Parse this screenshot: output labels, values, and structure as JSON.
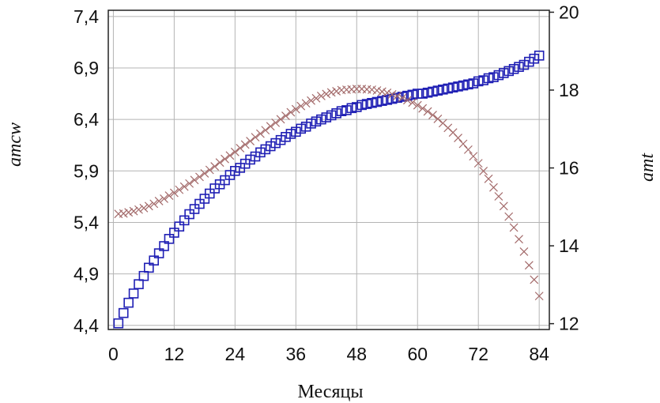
{
  "chart_data": {
    "type": "scatter",
    "xlabel": "Месяцы",
    "ylabel_left": "amcw",
    "ylabel_right": "amt",
    "x_ticks": [
      0,
      12,
      24,
      36,
      48,
      60,
      72,
      84
    ],
    "y_left_ticks": [
      "4,4",
      "4,9",
      "5,4",
      "5,9",
      "6,4",
      "6,9",
      "7,4"
    ],
    "y_right_ticks": [
      "12",
      "14",
      "16",
      "18",
      "20"
    ],
    "xlim": [
      -1,
      86
    ],
    "ylim_left": [
      4.36,
      7.46
    ],
    "ylim_right": [
      11.85,
      20.05
    ],
    "grid": true,
    "series": [
      {
        "axis": "left",
        "marker": "square",
        "color": "#1f1fb4",
        "x": [
          1,
          2,
          3,
          4,
          5,
          6,
          7,
          8,
          9,
          10,
          11,
          12,
          13,
          14,
          15,
          16,
          17,
          18,
          19,
          20,
          21,
          22,
          23,
          24,
          25,
          26,
          27,
          28,
          29,
          30,
          31,
          32,
          33,
          34,
          35,
          36,
          37,
          38,
          39,
          40,
          41,
          42,
          43,
          44,
          45,
          46,
          47,
          48,
          49,
          50,
          51,
          52,
          53,
          54,
          55,
          56,
          57,
          58,
          59,
          60,
          61,
          62,
          63,
          64,
          65,
          66,
          67,
          68,
          69,
          70,
          71,
          72,
          73,
          74,
          75,
          76,
          77,
          78,
          79,
          80,
          81,
          82,
          83,
          84
        ],
        "y": [
          4.42,
          4.52,
          4.62,
          4.71,
          4.8,
          4.88,
          4.96,
          5.03,
          5.1,
          5.17,
          5.24,
          5.3,
          5.36,
          5.42,
          5.48,
          5.53,
          5.58,
          5.63,
          5.68,
          5.73,
          5.77,
          5.81,
          5.86,
          5.9,
          5.93,
          5.97,
          6.01,
          6.04,
          6.08,
          6.11,
          6.14,
          6.17,
          6.2,
          6.23,
          6.26,
          6.28,
          6.31,
          6.33,
          6.36,
          6.38,
          6.4,
          6.42,
          6.44,
          6.46,
          6.48,
          6.49,
          6.51,
          6.52,
          6.54,
          6.55,
          6.56,
          6.57,
          6.58,
          6.59,
          6.6,
          6.61,
          6.62,
          6.63,
          6.64,
          6.65,
          6.65,
          6.66,
          6.67,
          6.68,
          6.69,
          6.7,
          6.71,
          6.72,
          6.73,
          6.74,
          6.75,
          6.77,
          6.78,
          6.8,
          6.81,
          6.83,
          6.85,
          6.87,
          6.89,
          6.91,
          6.93,
          6.96,
          6.99,
          7.02
        ]
      },
      {
        "axis": "right",
        "marker": "x",
        "color": "#a36a6a",
        "x": [
          1,
          2,
          3,
          4,
          5,
          6,
          7,
          8,
          9,
          10,
          11,
          12,
          13,
          14,
          15,
          16,
          17,
          18,
          19,
          20,
          21,
          22,
          23,
          24,
          25,
          26,
          27,
          28,
          29,
          30,
          31,
          32,
          33,
          34,
          35,
          36,
          37,
          38,
          39,
          40,
          41,
          42,
          43,
          44,
          45,
          46,
          47,
          48,
          49,
          50,
          51,
          52,
          53,
          54,
          55,
          56,
          57,
          58,
          59,
          60,
          61,
          62,
          63,
          64,
          65,
          66,
          67,
          68,
          69,
          70,
          71,
          72,
          73,
          74,
          75,
          76,
          77,
          78,
          79,
          80,
          81,
          82,
          83,
          84
        ],
        "y": [
          14.82,
          14.83,
          14.86,
          14.89,
          14.93,
          14.97,
          15.02,
          15.08,
          15.15,
          15.21,
          15.29,
          15.36,
          15.44,
          15.52,
          15.6,
          15.69,
          15.77,
          15.86,
          15.95,
          16.04,
          16.14,
          16.23,
          16.32,
          16.41,
          16.51,
          16.6,
          16.69,
          16.79,
          16.88,
          16.97,
          17.07,
          17.16,
          17.25,
          17.34,
          17.43,
          17.51,
          17.59,
          17.66,
          17.73,
          17.79,
          17.85,
          17.9,
          17.94,
          17.97,
          18.0,
          18.01,
          18.02,
          18.03,
          18.03,
          18.02,
          18.01,
          17.99,
          17.96,
          17.93,
          17.89,
          17.85,
          17.8,
          17.74,
          17.68,
          17.61,
          17.53,
          17.45,
          17.36,
          17.26,
          17.15,
          17.03,
          16.91,
          16.77,
          16.62,
          16.47,
          16.3,
          16.12,
          15.92,
          15.72,
          15.5,
          15.27,
          15.02,
          14.75,
          14.47,
          14.17,
          13.85,
          13.5,
          13.13,
          12.71
        ]
      }
    ]
  }
}
